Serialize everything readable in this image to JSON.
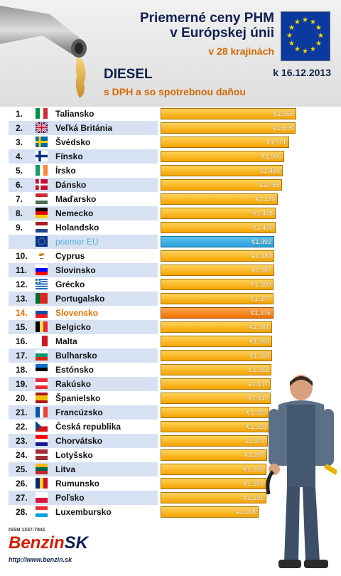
{
  "header": {
    "title_line1": "Priemerné ceny PHM",
    "title_line2": "v Európskej únii",
    "countries_count": "v 28 krajinách",
    "date": "k 16.12.2013",
    "fuel": "DIESEL",
    "subtitle": "s DPH a so spotrebnou daňou"
  },
  "colors": {
    "bar_normal": "#f5a300",
    "bar_eu": "#2aa0d8",
    "bar_slovakia": "#f07000",
    "text_eu": "#5aaee0",
    "text_slovakia": "#e07000",
    "title_navy": "#0f1f50",
    "accent_orange": "#d26800"
  },
  "chart_data": {
    "type": "bar",
    "orientation": "horizontal",
    "currency": "€",
    "rows": [
      {
        "rank": "1.",
        "country": "Taliansko",
        "value": 1.656,
        "label": "€1,656",
        "flag": [
          "#009246",
          "#ffffff",
          "#ce2b37"
        ],
        "flag_dir": "v"
      },
      {
        "rank": "2.",
        "country": "Veľká Británia",
        "value": 1.645,
        "label": "€1,645",
        "flag": "uk"
      },
      {
        "rank": "3.",
        "country": "Švédsko",
        "value": 1.571,
        "label": "€1,571",
        "flag": "se"
      },
      {
        "rank": "4.",
        "country": "Fínsko",
        "value": 1.505,
        "label": "€1,505",
        "flag": "fi"
      },
      {
        "rank": "5.",
        "country": "Írsko",
        "value": 1.489,
        "label": "€1,489",
        "flag": [
          "#169b62",
          "#ffffff",
          "#ff883e"
        ],
        "flag_dir": "v"
      },
      {
        "rank": "6.",
        "country": "Dánsko",
        "value": 1.485,
        "label": "€1,485",
        "flag": "dk"
      },
      {
        "rank": "7.",
        "country": "Maďarsko",
        "value": 1.429,
        "label": "€1,429",
        "flag": [
          "#ce2939",
          "#ffffff",
          "#477050"
        ],
        "flag_dir": "h"
      },
      {
        "rank": "8.",
        "country": "Nemecko",
        "value": 1.408,
        "label": "€1,408",
        "flag": [
          "#000000",
          "#dd0000",
          "#ffce00"
        ],
        "flag_dir": "h"
      },
      {
        "rank": "9.",
        "country": "Holandsko",
        "value": 1.405,
        "label": "€1,405",
        "flag": [
          "#ae1c28",
          "#ffffff",
          "#21468b"
        ],
        "flag_dir": "h"
      },
      {
        "rank": "",
        "country": "priemer EU",
        "value": 1.392,
        "label": "€1,392",
        "flag": "eu",
        "special": "eu"
      },
      {
        "rank": "10.",
        "country": "Cyprus",
        "value": 1.389,
        "label": "€1,389",
        "flag": "cy"
      },
      {
        "rank": "11.",
        "country": "Slovinsko",
        "value": 1.387,
        "label": "€1,387",
        "flag": [
          "#ffffff",
          "#0000ff",
          "#ff0000"
        ],
        "flag_dir": "h"
      },
      {
        "rank": "12.",
        "country": "Grécko",
        "value": 1.38,
        "label": "€1,380",
        "flag": "gr"
      },
      {
        "rank": "13.",
        "country": "Portugalsko",
        "value": 1.377,
        "label": "€1,377",
        "flag": [
          "#046a38",
          "#da291c",
          "#da291c"
        ],
        "flag_dir": "v"
      },
      {
        "rank": "14.",
        "country": "Slovensko",
        "value": 1.376,
        "label": "€1,376",
        "flag": [
          "#ffffff",
          "#0b4ea2",
          "#ee1c25"
        ],
        "flag_dir": "h",
        "special": "sk"
      },
      {
        "rank": "15.",
        "country": "Belgicko",
        "value": 1.361,
        "label": "€1,361",
        "flag": [
          "#000000",
          "#fae042",
          "#ed2939"
        ],
        "flag_dir": "v"
      },
      {
        "rank": "16.",
        "country": "Malta",
        "value": 1.36,
        "label": "€1,360",
        "flag": [
          "#ffffff",
          "#cf142b"
        ],
        "flag_dir": "v"
      },
      {
        "rank": "17.",
        "country": "Bulharsko",
        "value": 1.359,
        "label": "€1,359",
        "flag": [
          "#ffffff",
          "#00966e",
          "#d62612"
        ],
        "flag_dir": "h"
      },
      {
        "rank": "18.",
        "country": "Estónsko",
        "value": 1.352,
        "label": "€1,352",
        "flag": [
          "#0072ce",
          "#000000",
          "#ffffff"
        ],
        "flag_dir": "h"
      },
      {
        "rank": "19.",
        "country": "Rakúsko",
        "value": 1.347,
        "label": "€1,347",
        "flag": [
          "#ed2939",
          "#ffffff",
          "#ed2939"
        ],
        "flag_dir": "h"
      },
      {
        "rank": "20.",
        "country": "Španielsko",
        "value": 1.347,
        "label": "€1,347",
        "flag": [
          "#aa151b",
          "#f1bf00",
          "#f1bf00",
          "#aa151b"
        ],
        "flag_dir": "h"
      },
      {
        "rank": "21.",
        "country": "Francúzsko",
        "value": 1.329,
        "label": "€1,329",
        "flag": [
          "#0055a4",
          "#ffffff",
          "#ef4135"
        ],
        "flag_dir": "v"
      },
      {
        "rank": "22.",
        "country": "Česká republika",
        "value": 1.326,
        "label": "€1,326",
        "flag": "cz"
      },
      {
        "rank": "23.",
        "country": "Chorvátsko",
        "value": 1.307,
        "label": "€1,307",
        "flag": [
          "#ff0000",
          "#ffffff",
          "#171796"
        ],
        "flag_dir": "h"
      },
      {
        "rank": "24.",
        "country": "Lotyšsko",
        "value": 1.297,
        "label": "€1,297",
        "flag": [
          "#9e3039",
          "#9e3039",
          "#ffffff",
          "#9e3039",
          "#9e3039"
        ],
        "flag_dir": "h"
      },
      {
        "rank": "25.",
        "country": "Litva",
        "value": 1.295,
        "label": "€1,295",
        "flag": [
          "#fdb913",
          "#006a44",
          "#c1272d"
        ],
        "flag_dir": "h"
      },
      {
        "rank": "26.",
        "country": "Rumunsko",
        "value": 1.295,
        "label": "€1,295",
        "flag": [
          "#002b7f",
          "#fcd116",
          "#ce1126"
        ],
        "flag_dir": "v"
      },
      {
        "rank": "27.",
        "country": "Poľsko",
        "value": 1.291,
        "label": "€1,291",
        "flag": [
          "#ffffff",
          "#dc143c"
        ],
        "flag_dir": "h"
      },
      {
        "rank": "28.",
        "country": "Luxembursko",
        "value": 1.198,
        "label": "€1,198",
        "flag": [
          "#ed2939",
          "#ffffff",
          "#00a1de"
        ],
        "flag_dir": "h"
      }
    ]
  },
  "footer": {
    "issn": "ISSN 1337-7841",
    "brand_part1": "Benzin",
    "brand_part2": "SK",
    "url": "http://www.benzin.sk"
  }
}
